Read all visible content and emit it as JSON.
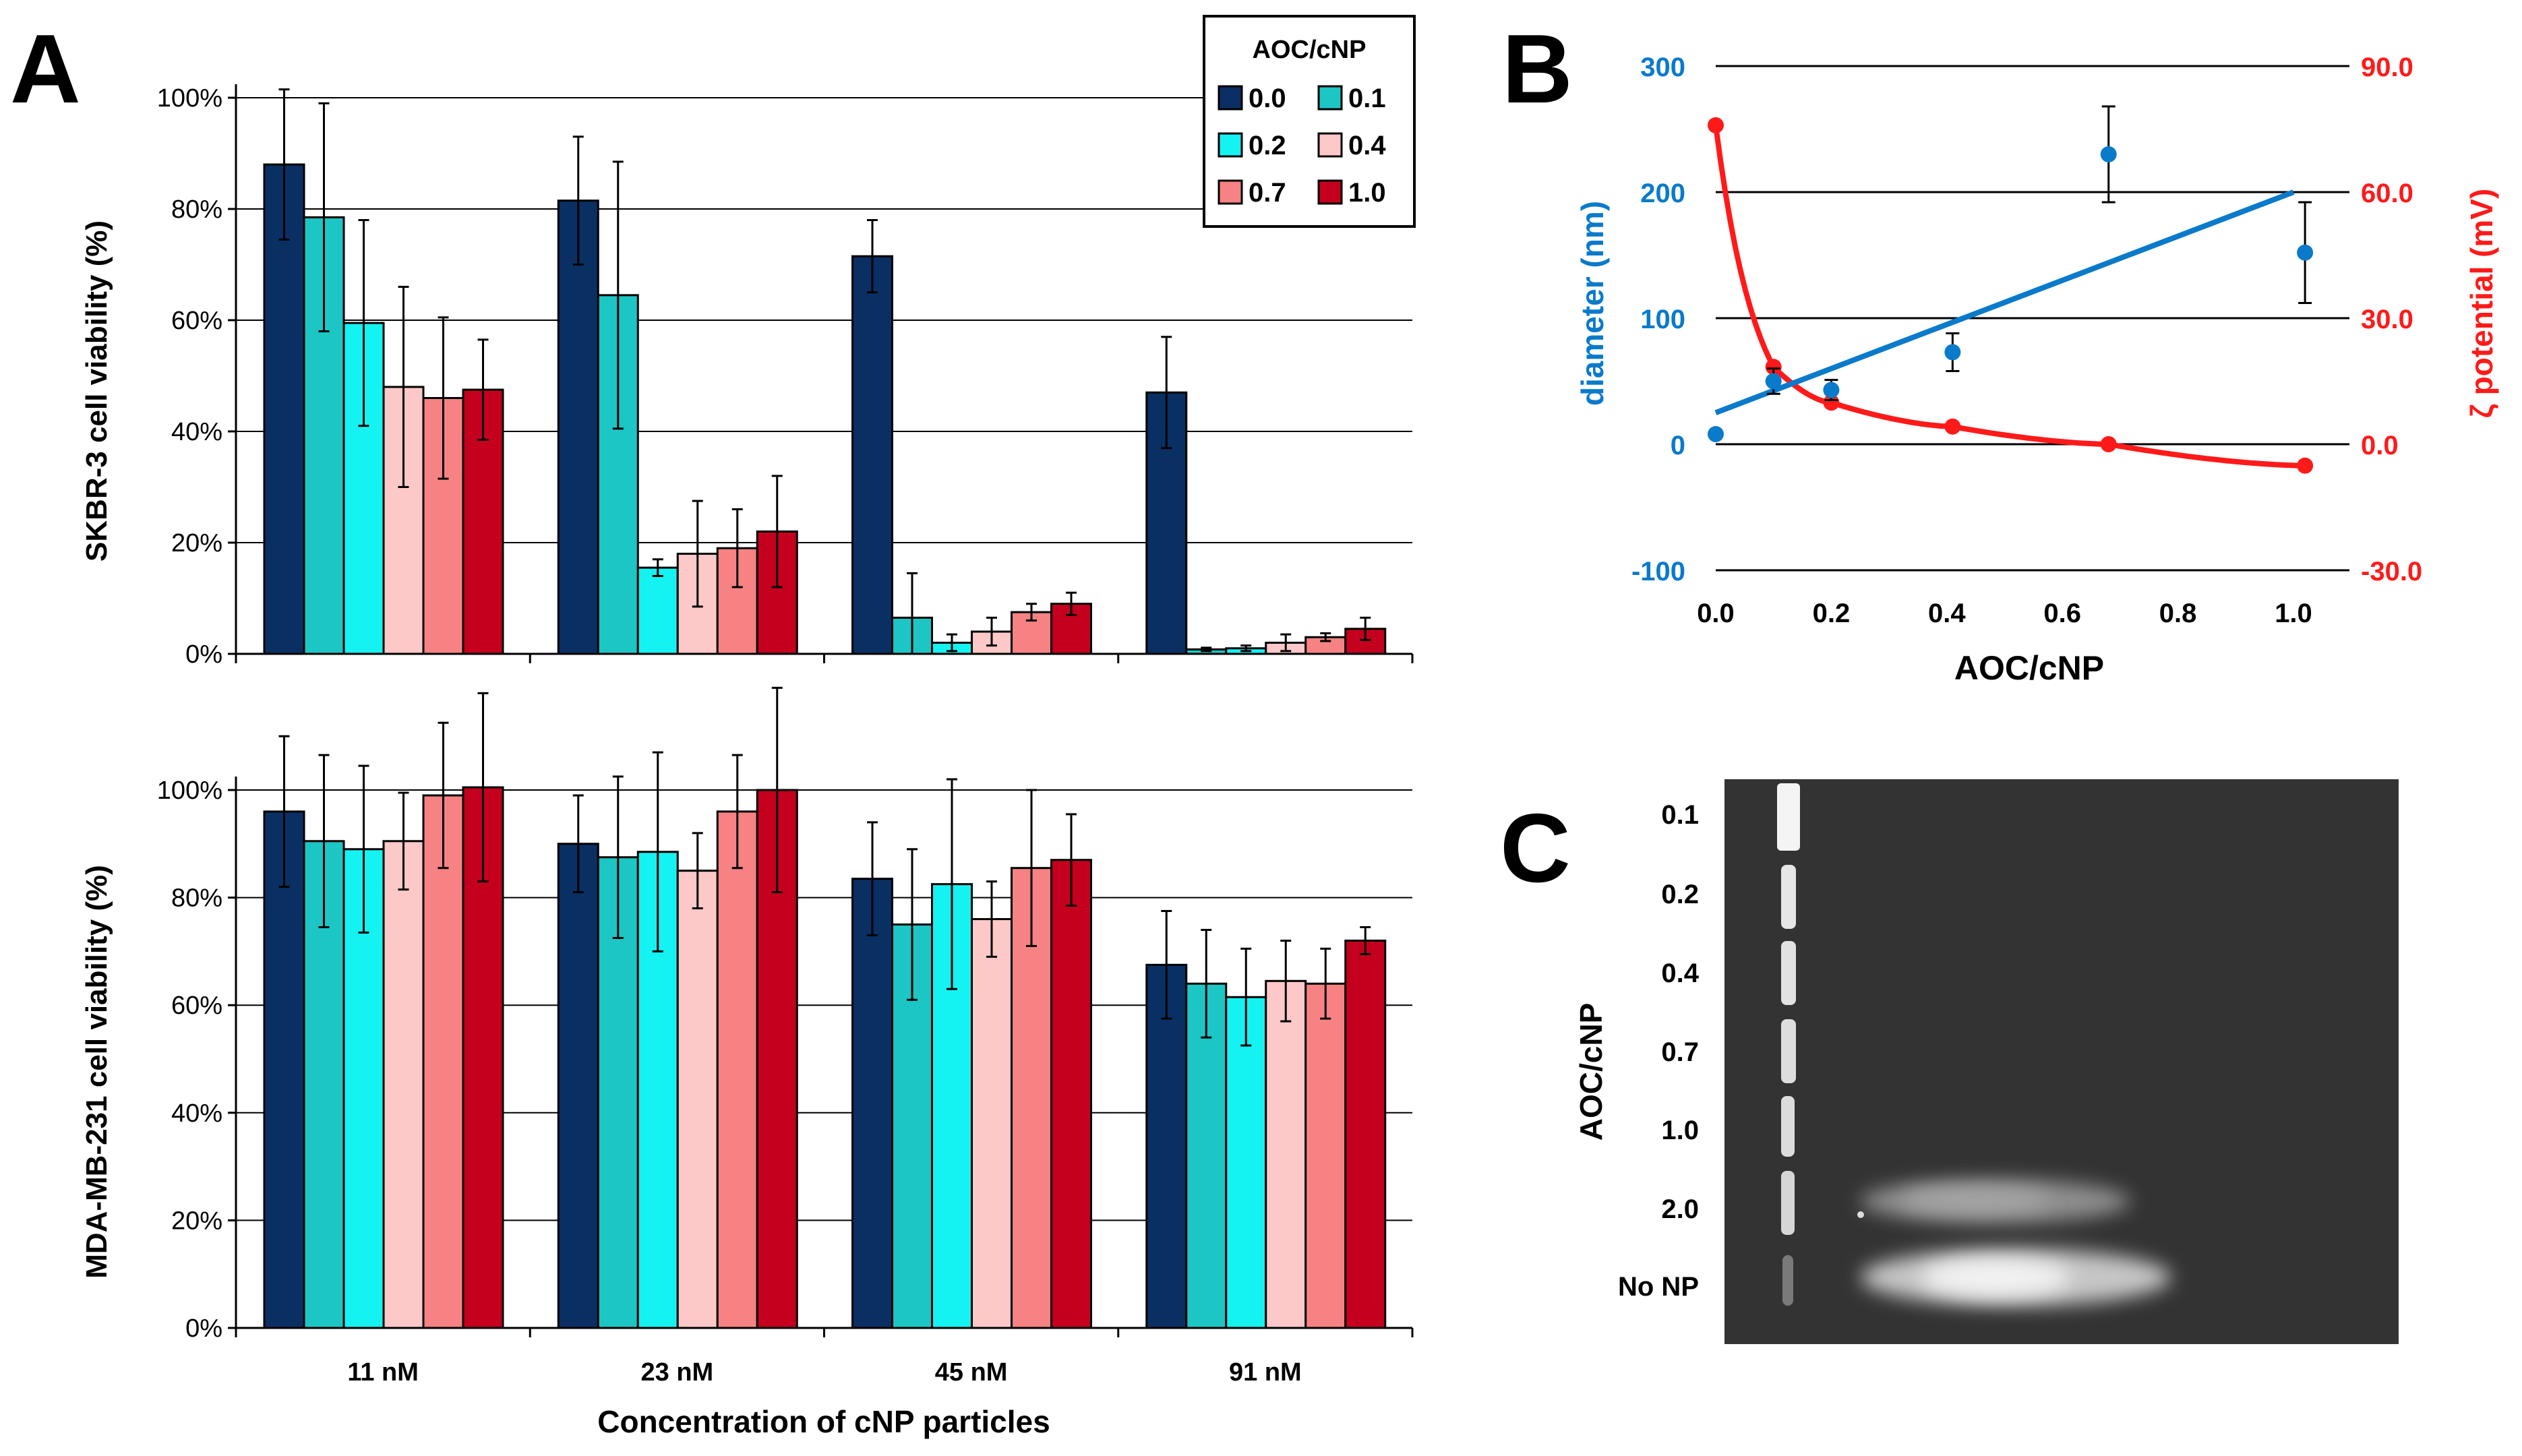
{
  "panels": {
    "A": "A",
    "B": "B",
    "C": "C"
  },
  "colors": {
    "0.0": "#0a2f63",
    "0.1": "#1cc6c4",
    "0.2": "#15f2f2",
    "0.4": "#fcc8c8",
    "0.7": "#f78283",
    "1.0": "#c4001e",
    "blue": "#0a7acb",
    "red": "#ff1a1a",
    "grid": "#000000"
  },
  "legend": {
    "title": "AOC/cNP",
    "items": [
      "0.0",
      "0.1",
      "0.2",
      "0.4",
      "0.7",
      "1.0"
    ]
  },
  "chart_data": [
    {
      "id": "A-top",
      "type": "bar",
      "ylabel": "SKBR-3 cell viability (%)",
      "ylim": [
        0,
        100
      ],
      "yticks": [
        "0%",
        "20%",
        "40%",
        "60%",
        "80%",
        "100%"
      ],
      "categories": [
        "11 nM",
        "23 nM",
        "45 nM",
        "91 nM"
      ],
      "series": [
        {
          "name": "0.0",
          "values": [
            88,
            81.5,
            71.5,
            47
          ],
          "errors": [
            13.5,
            11.5,
            6.5,
            10
          ]
        },
        {
          "name": "0.1",
          "values": [
            78.5,
            64.5,
            6.5,
            0.8
          ],
          "errors": [
            20.5,
            24,
            8,
            0.3
          ]
        },
        {
          "name": "0.2",
          "values": [
            59.5,
            15.5,
            2,
            1
          ],
          "errors": [
            18.5,
            1.5,
            1.5,
            0.5
          ]
        },
        {
          "name": "0.4",
          "values": [
            48,
            18,
            4,
            2
          ],
          "errors": [
            18,
            9.5,
            2.5,
            1.5
          ]
        },
        {
          "name": "0.7",
          "values": [
            46,
            19,
            7.5,
            3
          ],
          "errors": [
            14.5,
            7,
            1.5,
            0.7
          ]
        },
        {
          "name": "1.0",
          "values": [
            47.5,
            22,
            9,
            4.5
          ],
          "errors": [
            9,
            10,
            2,
            2
          ]
        }
      ]
    },
    {
      "id": "A-bottom",
      "type": "bar",
      "ylabel": "MDA-MB-231 cell viability (%)",
      "xlabel": "Concentration of cNP particles",
      "ylim": [
        0,
        100
      ],
      "yticks": [
        "0%",
        "20%",
        "40%",
        "60%",
        "80%",
        "100%"
      ],
      "categories": [
        "11 nM",
        "23 nM",
        "45 nM",
        "91 nM"
      ],
      "series": [
        {
          "name": "0.0",
          "values": [
            96,
            90,
            83.5,
            67.5
          ],
          "errors": [
            14,
            9,
            10.5,
            10
          ]
        },
        {
          "name": "0.1",
          "values": [
            90.5,
            87.5,
            75,
            64
          ],
          "errors": [
            16,
            15,
            14,
            10
          ]
        },
        {
          "name": "0.2",
          "values": [
            89,
            88.5,
            82.5,
            61.5
          ],
          "errors": [
            15.5,
            18.5,
            19.5,
            9
          ]
        },
        {
          "name": "0.4",
          "values": [
            90.5,
            85,
            76,
            64.5
          ],
          "errors": [
            9,
            7,
            7,
            7.5
          ]
        },
        {
          "name": "0.7",
          "values": [
            99,
            96,
            85.5,
            64
          ],
          "errors": [
            13.5,
            10.5,
            14.5,
            6.5
          ]
        },
        {
          "name": "1.0",
          "values": [
            100.5,
            100,
            87,
            72
          ],
          "errors": [
            17.5,
            19,
            8.5,
            2.5
          ]
        }
      ]
    },
    {
      "id": "B",
      "type": "scatter",
      "xlabel": "AOC/cNP",
      "ylabel_left": "diameter (nm)",
      "ylabel_right": "ζ potential (mV)",
      "xlim": [
        0,
        1.1
      ],
      "xticks": [
        "0.0",
        "0.2",
        "0.4",
        "0.6",
        "0.8",
        "1.0"
      ],
      "ylim_left": [
        -100,
        300
      ],
      "yticks_left": [
        "-100",
        "0",
        "100",
        "200",
        "300"
      ],
      "ylim_right": [
        -30,
        90
      ],
      "yticks_right": [
        "-30.0",
        "0.0",
        "30.0",
        "60.0",
        "90.0"
      ],
      "diameter": {
        "x": [
          0.0,
          0.1,
          0.2,
          0.41,
          0.68,
          1.02
        ],
        "y": [
          8,
          50,
          43,
          73,
          230,
          152
        ],
        "errors": [
          0,
          10,
          8,
          15,
          38,
          40
        ],
        "fit": {
          "x": [
            0.0,
            1.0
          ],
          "y": [
            25,
            200
          ]
        }
      },
      "zeta": {
        "x": [
          0.0,
          0.1,
          0.2,
          0.41,
          0.68,
          1.02
        ],
        "y": [
          75.9,
          18.4,
          9.9,
          4.2,
          0.0,
          -5.1
        ],
        "errors": [
          0,
          0,
          0,
          0,
          0,
          0
        ]
      }
    }
  ],
  "gel": {
    "ylabel": "AOC/cNP",
    "lanes": [
      "0.1",
      "0.2",
      "0.4",
      "0.7",
      "1.0",
      "2.0",
      "No NP"
    ]
  }
}
